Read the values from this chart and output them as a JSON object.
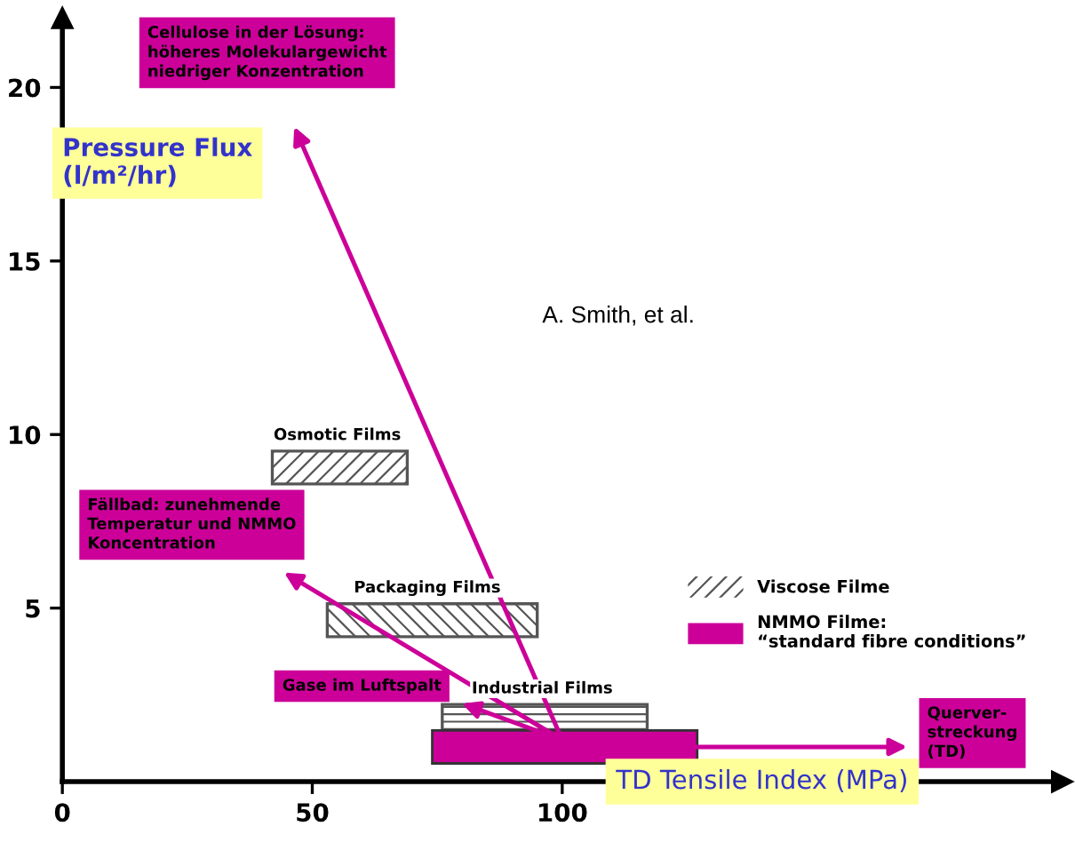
{
  "chart_data": {
    "type": "bar",
    "orientation": "horizontal",
    "xlabel": "TD Tensile Index (MPa)",
    "ylabel": "Pressure Flux\n(l/m²/hr)",
    "xlim": [
      0,
      200
    ],
    "xticks": [
      0,
      50,
      100
    ],
    "ylim": [
      0,
      22
    ],
    "yticks": [
      5,
      10,
      15,
      20
    ],
    "series": [
      {
        "name": "Viscose Filme",
        "color": "#555555",
        "x": [
          9.05,
          4.65,
          1.75
        ],
        "base": [
          42,
          53,
          76
        ],
        "values": [
          27,
          42,
          41
        ]
      },
      {
        "name": "NMMO Filme:\n“standard fibre conditions”",
        "color": "#cc0099",
        "x": [
          1.0
        ],
        "base": [
          74
        ],
        "values": [
          53
        ]
      }
    ],
    "annotations": [
      {
        "text": "Osmotic Films",
        "x": 55,
        "y": 9.55
      },
      {
        "text": "Packaging Films",
        "x": 73,
        "y": 5.15
      },
      {
        "text": "Industrial Films",
        "x": 96,
        "y": 2.25
      },
      "Cellulose in der Lösung:\nhöheres Molekulargewicht\nniedriger Konzentration",
      "Fällbad: zunehmende\nTemperatur und NMMO\nKoncentration",
      "Gase im Luftspalt",
      "Querver-\nstreckung\n(TD)",
      "A. Smith, et al."
    ],
    "legend": "right",
    "grid": false
  }
}
